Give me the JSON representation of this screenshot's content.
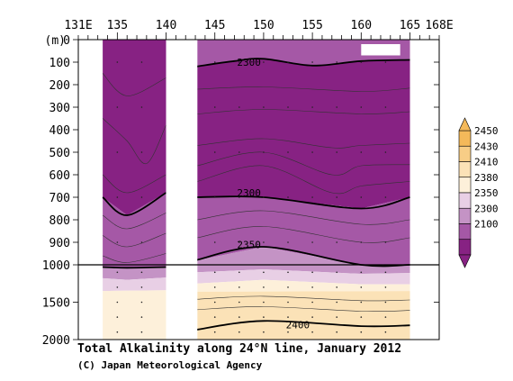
{
  "chart_data": {
    "type": "heatmap",
    "title": "Total Alkalinity along 24°N line, January 2012",
    "credit": "(C) Japan Meteorological Agency",
    "x_axis": {
      "range": [
        131,
        168
      ],
      "tick_labels": [
        {
          "value": 131,
          "label": "131E"
        },
        {
          "value": 135,
          "label": "135"
        },
        {
          "value": 140,
          "label": "140"
        },
        {
          "value": 145,
          "label": "145"
        },
        {
          "value": 150,
          "label": "150"
        },
        {
          "value": 155,
          "label": "155"
        },
        {
          "value": 160,
          "label": "160"
        },
        {
          "value": 165,
          "label": "165"
        },
        {
          "value": 168,
          "label": "168E"
        }
      ]
    },
    "y_axis": {
      "unit_label": "(m)",
      "upper_range": [
        0,
        1000
      ],
      "lower_range": [
        1000,
        2000
      ],
      "tick_labels": [
        {
          "value": 0,
          "label": "0"
        },
        {
          "value": 100,
          "label": "100"
        },
        {
          "value": 200,
          "label": "200"
        },
        {
          "value": 300,
          "label": "300"
        },
        {
          "value": 400,
          "label": "400"
        },
        {
          "value": 500,
          "label": "500"
        },
        {
          "value": 600,
          "label": "600"
        },
        {
          "value": 700,
          "label": "700"
        },
        {
          "value": 800,
          "label": "800"
        },
        {
          "value": 900,
          "label": "900"
        },
        {
          "value": 1000,
          "label": "1000"
        },
        {
          "value": 1500,
          "label": "1500"
        },
        {
          "value": 2000,
          "label": "2000"
        }
      ]
    },
    "colorbar": {
      "levels": [
        "2450",
        "2430",
        "2410",
        "2380",
        "2350",
        "2300",
        "2100"
      ],
      "colors": [
        "#f4b95a",
        "#f7cd86",
        "#fbe2b7",
        "#fdf0da",
        "#e8cfe5",
        "#c493c5",
        "#a558a6",
        "#872283"
      ]
    },
    "data_gaps": [
      {
        "lon_range": [
          140,
          143.2
        ],
        "depth_range": [
          0,
          2000
        ]
      },
      {
        "lon_range": [
          160,
          164
        ],
        "depth_range": [
          20,
          70
        ]
      }
    ],
    "contour_labels": [
      {
        "text": "2300",
        "lon": 148.5,
        "depth": 100
      },
      {
        "text": "2300",
        "lon": 148.5,
        "depth": 680
      },
      {
        "text": "2350",
        "lon": 148.5,
        "depth": 910
      },
      {
        "text": "2400",
        "lon": 153.5,
        "depth": 1800
      }
    ],
    "bold_contours": [
      {
        "value": 2300,
        "points": [
          [
            143,
            120
          ],
          [
            147,
            95
          ],
          [
            150,
            85
          ],
          [
            155,
            115
          ],
          [
            160,
            95
          ],
          [
            165,
            90
          ]
        ]
      },
      {
        "value": 2300,
        "points": [
          [
            133.5,
            700
          ],
          [
            136,
            780
          ],
          [
            140,
            680
          ]
        ]
      },
      {
        "value": 2300,
        "points": [
          [
            143,
            700
          ],
          [
            150,
            700
          ],
          [
            160,
            750
          ],
          [
            165,
            700
          ]
        ]
      },
      {
        "value": 2350,
        "points": [
          [
            133.5,
            1030
          ],
          [
            136,
            1040
          ],
          [
            140,
            1030
          ]
        ]
      },
      {
        "value": 2350,
        "points": [
          [
            143,
            980
          ],
          [
            150,
            920
          ],
          [
            160,
            1000
          ],
          [
            165,
            1000
          ]
        ]
      },
      {
        "value": 2400,
        "points": [
          [
            143,
            1870
          ],
          [
            150,
            1750
          ],
          [
            160,
            1820
          ],
          [
            165,
            1810
          ]
        ]
      }
    ]
  }
}
